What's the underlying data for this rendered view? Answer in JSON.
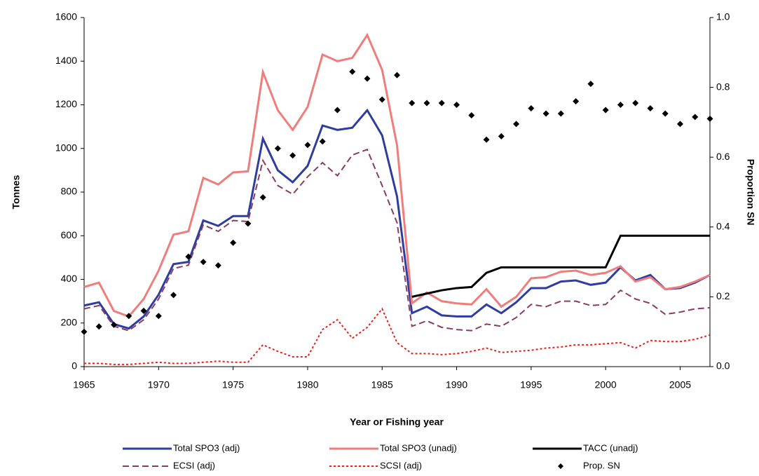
{
  "chart_data": {
    "type": "line",
    "x_label": "Year or Fishing year",
    "y_label": "Tonnes",
    "y2_label": "Proportion SN",
    "x": [
      1965,
      1966,
      1967,
      1968,
      1969,
      1970,
      1971,
      1972,
      1973,
      1974,
      1975,
      1976,
      1977,
      1978,
      1979,
      1980,
      1981,
      1982,
      1983,
      1984,
      1985,
      1986,
      1987,
      1988,
      1989,
      1990,
      1991,
      1992,
      1993,
      1994,
      1995,
      1996,
      1997,
      1998,
      1999,
      2000,
      2001,
      2002,
      2003,
      2004,
      2005,
      2006,
      2007
    ],
    "xlim": [
      1965,
      2007
    ],
    "xticks": [
      1965,
      1970,
      1975,
      1980,
      1985,
      1990,
      1995,
      2000,
      2005
    ],
    "ylim": [
      0,
      1600
    ],
    "yticks": [
      0,
      200,
      400,
      600,
      800,
      1000,
      1200,
      1400,
      1600
    ],
    "y2lim": [
      0,
      1
    ],
    "y2ticks": [
      {
        "value": 0,
        "label": "0.0"
      },
      {
        "value": 0.2,
        "label": "0.2"
      },
      {
        "value": 0.4,
        "label": "0.4"
      },
      {
        "value": 0.6,
        "label": "0.6"
      },
      {
        "value": 0.8,
        "label": "0.8"
      },
      {
        "value": 1,
        "label": "1.0"
      }
    ],
    "grid": false,
    "series": [
      {
        "name": "Total SPO3 (adj)",
        "color": "#2e3d9e",
        "line_style": "solid",
        "values": [
          280,
          295,
          195,
          175,
          230,
          330,
          470,
          480,
          670,
          645,
          690,
          690,
          1045,
          900,
          845,
          920,
          1105,
          1085,
          1095,
          1175,
          1060,
          780,
          245,
          275,
          235,
          230,
          230,
          285,
          245,
          295,
          360,
          360,
          390,
          395,
          375,
          385,
          455,
          395,
          420,
          355,
          360,
          385,
          420
        ]
      },
      {
        "name": "Total SPO3 (unadj)",
        "color": "#f07c7c",
        "line_style": "solid",
        "values": [
          365,
          385,
          255,
          230,
          310,
          440,
          605,
          620,
          865,
          835,
          890,
          895,
          1350,
          1175,
          1085,
          1190,
          1430,
          1400,
          1415,
          1520,
          1360,
          1015,
          290,
          340,
          300,
          290,
          285,
          355,
          275,
          320,
          405,
          410,
          435,
          440,
          420,
          430,
          460,
          390,
          410,
          355,
          365,
          390,
          420
        ]
      },
      {
        "name": "TACC (unadj)",
        "color": "#000000",
        "line_style": "solid",
        "values": [
          null,
          null,
          null,
          null,
          null,
          null,
          null,
          null,
          null,
          null,
          null,
          null,
          null,
          null,
          null,
          null,
          null,
          null,
          null,
          null,
          null,
          null,
          320,
          335,
          350,
          360,
          365,
          430,
          455,
          455,
          455,
          455,
          455,
          455,
          455,
          455,
          600,
          600,
          600,
          600,
          600,
          600,
          600
        ]
      },
      {
        "name": "ECSI (adj)",
        "color": "#8b3a62",
        "line_style": "dashed",
        "values": [
          265,
          280,
          185,
          165,
          215,
          310,
          450,
          465,
          650,
          620,
          670,
          665,
          945,
          830,
          790,
          870,
          935,
          875,
          970,
          995,
          830,
          660,
          185,
          210,
          180,
          170,
          165,
          195,
          185,
          225,
          285,
          275,
          300,
          300,
          280,
          285,
          350,
          310,
          290,
          240,
          250,
          265,
          270
        ]
      },
      {
        "name": "SCSI (adj)",
        "color": "#e8201c",
        "line_style": "dotted",
        "values": [
          15,
          15,
          10,
          10,
          15,
          20,
          15,
          15,
          20,
          25,
          20,
          20,
          100,
          70,
          45,
          45,
          170,
          215,
          130,
          180,
          265,
          110,
          60,
          60,
          55,
          60,
          70,
          85,
          65,
          70,
          75,
          85,
          90,
          100,
          100,
          105,
          110,
          85,
          120,
          115,
          115,
          125,
          145
        ]
      },
      {
        "name": "Prop. SN",
        "color": "#000000",
        "line_style": "none",
        "marker": "diamond",
        "axis": "y2",
        "values": [
          0.1,
          0.115,
          0.12,
          0.145,
          0.16,
          0.145,
          0.205,
          0.315,
          0.3,
          0.29,
          0.355,
          0.41,
          0.485,
          0.625,
          0.605,
          0.635,
          0.645,
          0.735,
          0.845,
          0.825,
          0.765,
          0.835,
          0.755,
          0.755,
          0.755,
          0.75,
          0.72,
          0.65,
          0.66,
          0.695,
          0.74,
          0.725,
          0.725,
          0.76,
          0.81,
          0.735,
          0.75,
          0.755,
          0.74,
          0.725,
          0.695,
          0.715,
          0.71
        ]
      }
    ]
  }
}
